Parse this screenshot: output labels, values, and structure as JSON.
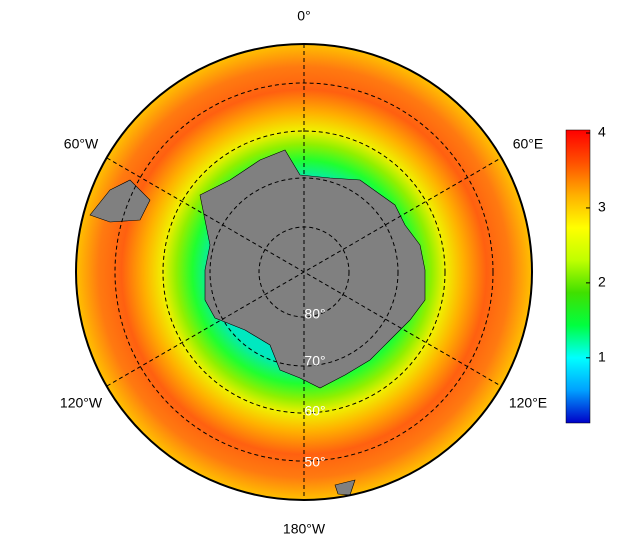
{
  "map": {
    "longitude_labels": [
      "0°",
      "60°E",
      "120°E",
      "180°W",
      "120°W",
      "60°W"
    ],
    "latitude_labels": [
      "80°",
      "70°",
      "60°",
      "50°"
    ]
  },
  "colorbar": {
    "lim": [
      0.13,
      4.04
    ],
    "ticks": [
      1,
      2,
      3,
      4
    ],
    "colors": [
      "#0000c8",
      "#00a0ff",
      "#00ffff",
      "#00ff40",
      "#40e000",
      "#c0ff00",
      "#ffff00",
      "#ffb000",
      "#ff5000",
      "#ff0000"
    ]
  }
}
